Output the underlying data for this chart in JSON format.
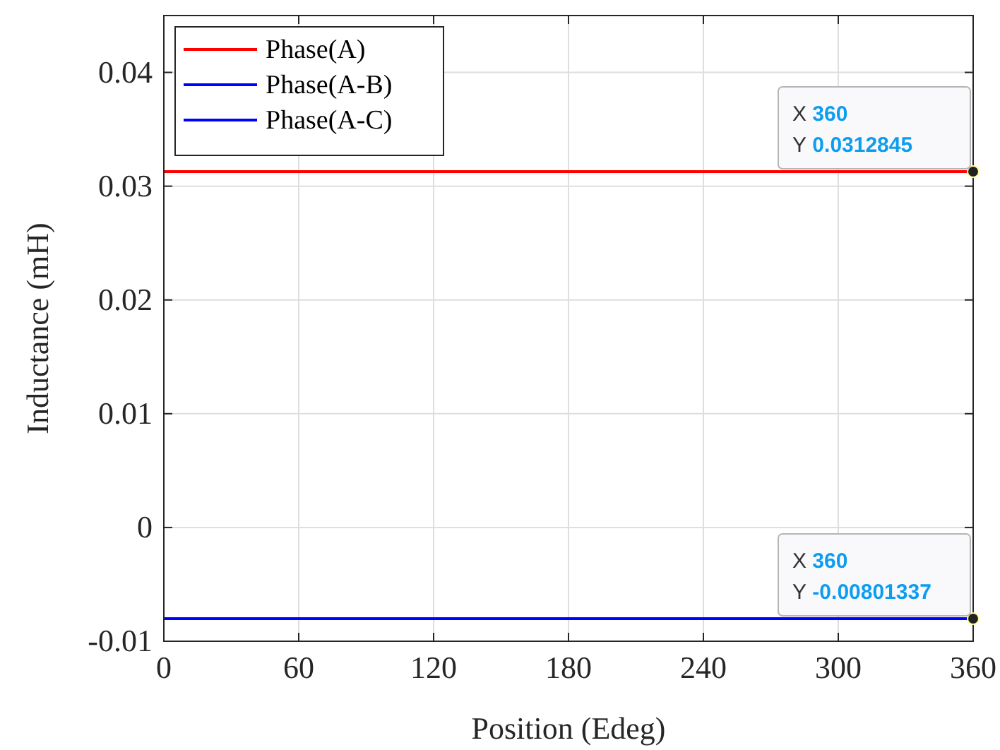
{
  "chart_data": {
    "type": "line",
    "xlabel": "Position (Edeg)",
    "ylabel": "Inductance (mH)",
    "x": [
      0,
      360
    ],
    "series": [
      {
        "name": "Phase(A)",
        "color": "#ff0000",
        "values": [
          0.0312845,
          0.0312845
        ]
      },
      {
        "name": "Phase(A-B)",
        "color": "#0000ff",
        "values": [
          null,
          null
        ]
      },
      {
        "name": "Phase(A-C)",
        "color": "#0000ff",
        "values": [
          -0.00801337,
          -0.00801337
        ]
      }
    ],
    "xlim": [
      0,
      360
    ],
    "xticks": [
      0,
      60,
      120,
      180,
      240,
      300,
      360
    ],
    "ylim": [
      -0.01,
      0.045
    ],
    "yticks": [
      -0.01,
      0,
      0.01,
      0.02,
      0.03,
      0.04
    ],
    "grid": true,
    "legend": "top left",
    "line_style": "solid",
    "annotations": [
      {
        "text": "X 360\nY 0.0312845",
        "x": 360,
        "y": 0.0312845
      },
      {
        "text": "X 360\nY -0.00801337",
        "x": 360,
        "y": -0.00801337
      }
    ]
  }
}
